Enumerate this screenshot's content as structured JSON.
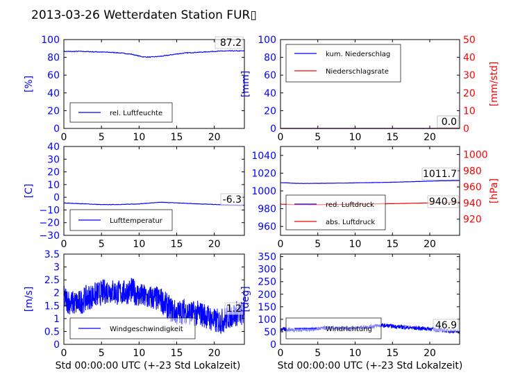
{
  "figure": {
    "title": "2013-03-26 Wetterdaten Station FUR▯",
    "xlabel": "Std 00:00:00 UTC (+-23 Std Lokalzeit)",
    "colors": {
      "primary": "#0000ff",
      "secondary": "#ff0000",
      "light": "#8080ff",
      "axis": "#000000"
    }
  },
  "chart_data": [
    {
      "type": "line",
      "xlim": [
        0,
        24
      ],
      "ylim": [
        0,
        100
      ],
      "xticks": [
        0,
        5,
        10,
        15,
        20
      ],
      "yticks": [
        0,
        20,
        40,
        60,
        80,
        100
      ],
      "ylabel": "[%]",
      "legend": {
        "placement": "lower-left",
        "entries": [
          "rel. Luftfeuchte"
        ]
      },
      "annotations": [
        "87.2"
      ],
      "series": [
        {
          "name": "rel. Luftfeuchte",
          "color": "#0000ff",
          "noise": 0.4,
          "x": [
            0,
            1,
            2,
            3,
            4,
            5,
            6,
            7,
            8,
            9,
            10,
            10.5,
            11,
            11.5,
            12,
            13,
            14,
            15,
            16,
            17,
            18,
            19,
            20,
            21,
            22,
            23,
            24
          ],
          "y": [
            86.7,
            86.5,
            86.8,
            86.5,
            86.2,
            86.0,
            85.7,
            85.3,
            84.5,
            83.5,
            81.5,
            80.6,
            80.4,
            80.3,
            80.6,
            81.3,
            82.5,
            83.8,
            84.8,
            85.4,
            85.7,
            86.2,
            86.8,
            87.0,
            87.2,
            87.2,
            87.2
          ]
        }
      ]
    },
    {
      "type": "line",
      "xlim": [
        0,
        24
      ],
      "ylim": [
        0,
        100
      ],
      "ylim2": [
        0,
        50
      ],
      "xticks": [
        0,
        5,
        10,
        15,
        20
      ],
      "yticks": [
        0,
        20,
        40,
        60,
        80,
        100
      ],
      "yticks2": [
        0,
        10,
        20,
        30,
        40,
        50
      ],
      "ylabel": "[mm]",
      "ylabel2": "[mm/std]",
      "legend": {
        "placement": "upper-left",
        "entries": [
          "kum. Niederschlag",
          "Niederschlagsrate"
        ]
      },
      "annotations": [
        "0.0",
        "0.0"
      ],
      "series": [
        {
          "name": "kum. Niederschlag",
          "color": "#0000ff",
          "noise": 0,
          "x": [
            0,
            24
          ],
          "y": [
            0,
            0
          ]
        },
        {
          "name": "Niederschlagsrate",
          "color": "#ff0000",
          "noise": 0,
          "axis": "right",
          "x": [
            0,
            24
          ],
          "y": [
            0,
            0
          ]
        }
      ]
    },
    {
      "type": "line",
      "xlim": [
        0,
        24
      ],
      "ylim": [
        -30,
        40
      ],
      "xticks": [
        0,
        5,
        10,
        15,
        20
      ],
      "yticks": [
        -30,
        -20,
        -10,
        0,
        10,
        20,
        30,
        40
      ],
      "ylabel": "[C]",
      "legend": {
        "placement": "lower-left",
        "entries": [
          "Lufttemperatur"
        ]
      },
      "annotations": [
        "-6.3"
      ],
      "series": [
        {
          "name": "Lufttemperatur",
          "color": "#0000ff",
          "noise": 0.15,
          "x": [
            0,
            2,
            4,
            5,
            6,
            8,
            10,
            12,
            13,
            14,
            16,
            18,
            20,
            22,
            24
          ],
          "y": [
            -4.5,
            -5.0,
            -5.5,
            -5.8,
            -5.8,
            -5.6,
            -5.2,
            -4.3,
            -4.0,
            -4.2,
            -4.7,
            -5.2,
            -5.7,
            -6.1,
            -6.3
          ]
        }
      ]
    },
    {
      "type": "line",
      "xlim": [
        0,
        24
      ],
      "ylim": [
        950,
        1050
      ],
      "ylim2": [
        900,
        1010
      ],
      "xticks": [
        0,
        5,
        10,
        15,
        20
      ],
      "yticks": [
        960,
        980,
        1000,
        1020,
        1040
      ],
      "yticks2": [
        920,
        940,
        960,
        980,
        1000
      ],
      "ylabel": "",
      "ylabel2": "[hPa]",
      "legend": {
        "placement": "lower-left",
        "entries": [
          "red. Luftdruck",
          "abs. Luftdruck"
        ]
      },
      "annotations": [
        "1011.7",
        "940.9"
      ],
      "series": [
        {
          "name": "red. Luftdruck",
          "color": "#0000ff",
          "noise": 0.1,
          "x": [
            0,
            2,
            3,
            6,
            9,
            12,
            15,
            18,
            21,
            24
          ],
          "y": [
            1009.3,
            1008.6,
            1008.4,
            1008.6,
            1008.9,
            1009.3,
            1009.8,
            1010.5,
            1011.3,
            1011.7
          ]
        },
        {
          "name": "abs. Luftdruck",
          "color": "#ff0000",
          "noise": 0.1,
          "axis": "right",
          "x": [
            0,
            2,
            4,
            8,
            12,
            16,
            20,
            24
          ],
          "y": [
            938.6,
            938.0,
            937.9,
            938.2,
            938.8,
            939.4,
            940.2,
            940.9
          ]
        }
      ]
    },
    {
      "type": "line",
      "xlim": [
        0,
        24
      ],
      "ylim": [
        0,
        3.5
      ],
      "xticks": [
        0,
        5,
        10,
        15,
        20
      ],
      "yticks": [
        0.0,
        0.5,
        1.0,
        1.5,
        2.0,
        2.5,
        3.0,
        3.5
      ],
      "ylabel": "[m/s]",
      "legend": {
        "placement": "lower-left",
        "entries": [
          "Windgeschwindigkeit"
        ]
      },
      "annotations": [
        "1.2"
      ],
      "series": [
        {
          "name": "Windgeschwindigkeit",
          "color": "#0000ff",
          "noise": 0.5,
          "x": [
            0,
            1,
            2,
            3,
            4,
            5,
            6,
            7,
            8,
            9,
            10,
            11,
            12,
            13,
            14,
            15,
            16,
            17,
            18,
            19,
            20,
            21,
            22,
            23,
            24
          ],
          "y": [
            1.8,
            1.6,
            1.6,
            1.8,
            1.9,
            2.0,
            2.1,
            2.0,
            2.0,
            2.1,
            1.9,
            1.8,
            1.8,
            1.7,
            1.4,
            1.2,
            1.3,
            1.2,
            1.2,
            1.1,
            0.9,
            0.9,
            1.1,
            1.2,
            1.2
          ]
        }
      ]
    },
    {
      "type": "line",
      "xlim": [
        0,
        24
      ],
      "ylim": [
        0,
        360
      ],
      "xticks": [
        0,
        5,
        10,
        15,
        20
      ],
      "yticks": [
        0,
        50,
        100,
        150,
        200,
        250,
        300,
        350
      ],
      "ylabel": "[deg]",
      "legend": {
        "placement": "lower-left",
        "entries": [
          "Windrichtung"
        ]
      },
      "annotations": [
        "46.9"
      ],
      "series": [
        {
          "name": "Windrichtung",
          "color": "#0000ff",
          "noise": 8,
          "x": [
            0,
            2,
            4,
            6,
            8,
            10,
            12,
            13,
            14,
            16,
            18,
            20,
            22,
            24
          ],
          "y": [
            60,
            58,
            60,
            65,
            63,
            65,
            70,
            75,
            75,
            70,
            65,
            62,
            55,
            50
          ]
        }
      ]
    }
  ]
}
